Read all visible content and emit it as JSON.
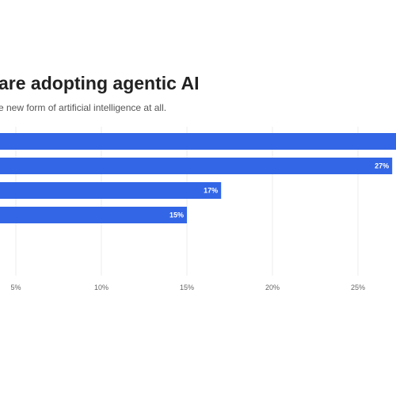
{
  "chart_data": {
    "type": "bar",
    "orientation": "horizontal",
    "title": "are adopting agentic AI",
    "subtitle": "e new form of artificial intelligence at all.",
    "categories": [
      "",
      "",
      "",
      "",
      ""
    ],
    "values": [
      29,
      27,
      17,
      15,
      0
    ],
    "data_labels": [
      "",
      "27%",
      "17%",
      "15%",
      ""
    ],
    "xlim": [
      0,
      28
    ],
    "xticks": [
      5,
      10,
      15,
      20,
      25
    ],
    "xtick_labels": [
      "5%",
      "10%",
      "15%",
      "20%",
      "25%"
    ],
    "grid": "vertical",
    "bar_color": "#3366e6",
    "grid_color": "#eeeeee"
  }
}
